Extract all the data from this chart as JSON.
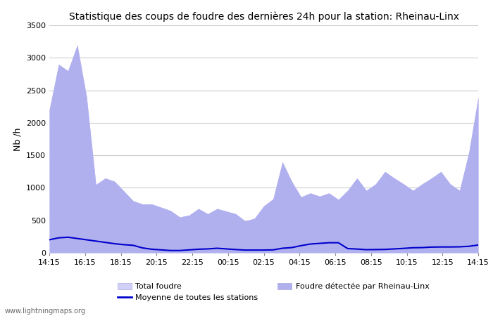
{
  "title": "Statistique des coups de foudre des dernières 24h pour la station: Rheinau-Linx",
  "ylabel": "Nb /h",
  "watermark": "www.lightningmaps.org",
  "ylim": [
    0,
    3500
  ],
  "yticks": [
    0,
    500,
    1000,
    1500,
    2000,
    2500,
    3000,
    3500
  ],
  "x_labels": [
    "14:15",
    "16:15",
    "18:15",
    "20:15",
    "22:15",
    "00:15",
    "02:15",
    "04:15",
    "06:15",
    "08:15",
    "10:15",
    "12:15",
    "14:15"
  ],
  "legend_labels": [
    "Total foudre",
    "Foudre détectée par Rheinau-Linx",
    "Moyenne de toutes les stations"
  ],
  "total_foudre_color": "#d0d0f8",
  "rheinau_color": "#b0b0ef",
  "moyenne_color": "#0000cc",
  "background_color": "#ffffff",
  "grid_color": "#cccccc",
  "total_foudre": [
    2200,
    2900,
    2800,
    3200,
    2400,
    1050,
    1150,
    1100,
    950,
    800,
    750,
    750,
    700,
    650,
    550,
    580,
    680,
    600,
    680,
    640,
    600,
    490,
    530,
    720,
    830,
    1400,
    1100,
    860,
    920,
    870,
    920,
    820,
    960,
    1150,
    960,
    1060,
    1250,
    1150,
    1060,
    960,
    1060,
    1150,
    1250,
    1060,
    960,
    1550,
    2400
  ],
  "rheinau_linx": [
    2200,
    2900,
    2800,
    3200,
    2400,
    1050,
    1150,
    1100,
    950,
    800,
    750,
    750,
    700,
    650,
    550,
    580,
    680,
    600,
    680,
    640,
    600,
    490,
    530,
    720,
    830,
    1400,
    1100,
    860,
    920,
    870,
    920,
    820,
    960,
    1150,
    960,
    1060,
    1250,
    1150,
    1060,
    960,
    1060,
    1150,
    1250,
    1060,
    960,
    1550,
    2400
  ],
  "moyenne": [
    200,
    230,
    240,
    220,
    200,
    180,
    160,
    140,
    125,
    115,
    75,
    55,
    45,
    35,
    35,
    45,
    55,
    60,
    70,
    60,
    50,
    42,
    42,
    42,
    45,
    70,
    80,
    110,
    135,
    145,
    155,
    155,
    65,
    58,
    48,
    50,
    52,
    60,
    68,
    78,
    80,
    88,
    90,
    90,
    92,
    100,
    120
  ]
}
